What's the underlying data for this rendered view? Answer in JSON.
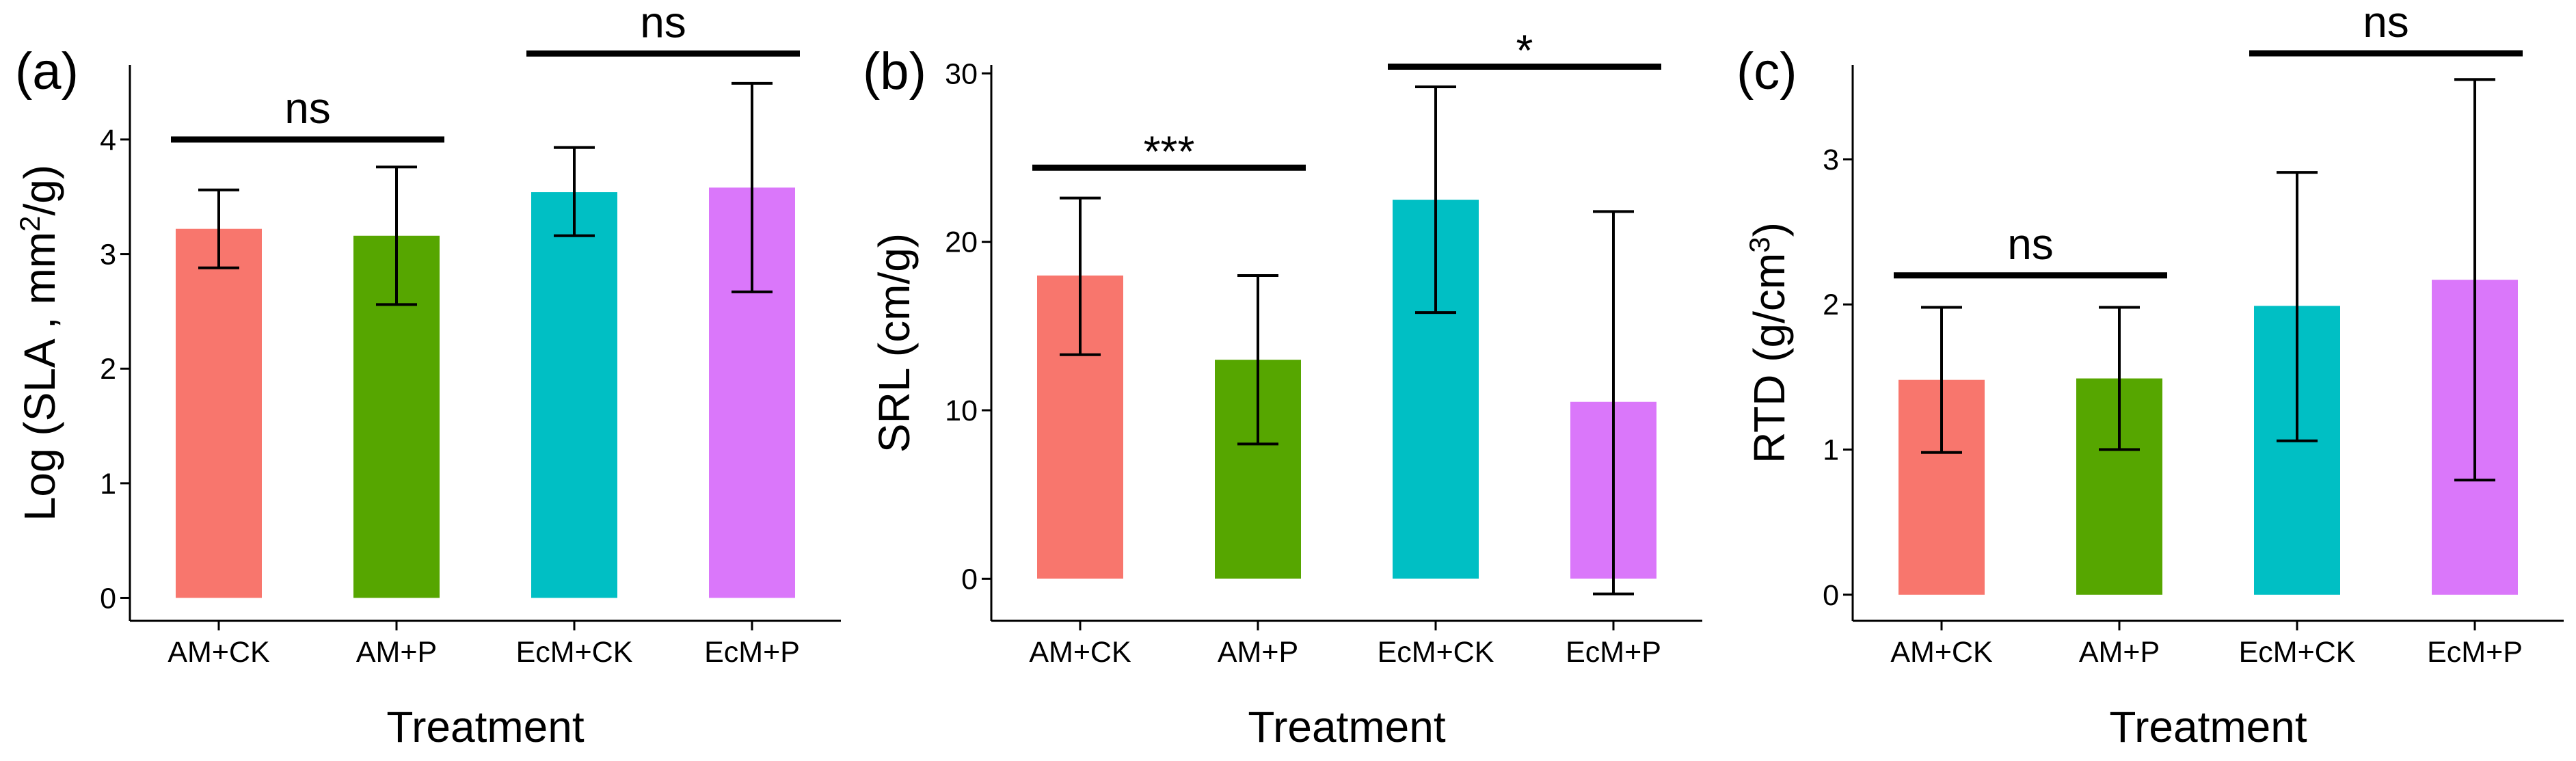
{
  "chart_data": [
    {
      "type": "bar",
      "panel_label": "(a)",
      "ylabel_main": "Log (SLA , mm",
      "ylabel_sup": "2",
      "ylabel_end": "/g)",
      "xlabel": "Treatment",
      "categories": [
        "AM+CK",
        "AM+P",
        "EcM+CK",
        "EcM+P"
      ],
      "values": [
        3.22,
        3.16,
        3.54,
        3.58
      ],
      "err_low": [
        2.88,
        2.56,
        3.16,
        2.67
      ],
      "err_high": [
        3.56,
        3.76,
        3.93,
        4.49
      ],
      "colors": [
        "#F8766D",
        "#56A600",
        "#00BFC4",
        "#DA77FA"
      ],
      "ylim": [
        -0.2,
        4.65
      ],
      "yticks": [
        0,
        1,
        2,
        3,
        4
      ],
      "ytick_labels": [
        "0",
        "1",
        "2",
        "3",
        "4"
      ],
      "significance": [
        {
          "from": 0,
          "to": 1,
          "y": 4.0,
          "label": "ns"
        },
        {
          "from": 2,
          "to": 3,
          "y": 4.75,
          "label": "ns"
        }
      ]
    },
    {
      "type": "bar",
      "panel_label": "(b)",
      "ylabel_main": "SRL (cm/g)",
      "ylabel_sup": "",
      "ylabel_end": "",
      "xlabel": "Treatment",
      "categories": [
        "AM+CK",
        "AM+P",
        "EcM+CK",
        "EcM+P"
      ],
      "values": [
        18.0,
        13.0,
        22.5,
        10.5
      ],
      "err_low": [
        13.3,
        8.0,
        15.8,
        -0.9
      ],
      "err_high": [
        22.6,
        18.0,
        29.2,
        21.8
      ],
      "colors": [
        "#F8766D",
        "#56A600",
        "#00BFC4",
        "#DA77FA"
      ],
      "ylim": [
        -2.5,
        30.5
      ],
      "yticks": [
        0,
        10,
        20,
        30
      ],
      "ytick_labels": [
        "0",
        "10",
        "20",
        "30"
      ],
      "significance": [
        {
          "from": 0,
          "to": 1,
          "y": 24.4,
          "label": "***"
        },
        {
          "from": 2,
          "to": 3,
          "y": 30.4,
          "label": "*"
        }
      ]
    },
    {
      "type": "bar",
      "panel_label": "(c)",
      "ylabel_main": "RTD (g/cm",
      "ylabel_sup": "3",
      "ylabel_end": ")",
      "xlabel": "Treatment",
      "categories": [
        "AM+CK",
        "AM+P",
        "EcM+CK",
        "EcM+P"
      ],
      "values": [
        1.48,
        1.49,
        1.99,
        2.17
      ],
      "err_low": [
        0.98,
        1.0,
        1.06,
        0.79
      ],
      "err_high": [
        1.98,
        1.98,
        2.91,
        3.55
      ],
      "colors": [
        "#F8766D",
        "#56A600",
        "#00BFC4",
        "#DA77FA"
      ],
      "ylim": [
        -0.18,
        3.65
      ],
      "yticks": [
        0,
        1,
        2,
        3
      ],
      "ytick_labels": [
        "0",
        "1",
        "2",
        "3"
      ],
      "significance": [
        {
          "from": 0,
          "to": 1,
          "y": 2.2,
          "label": "ns"
        },
        {
          "from": 2,
          "to": 3,
          "y": 3.73,
          "label": "ns"
        }
      ]
    }
  ]
}
